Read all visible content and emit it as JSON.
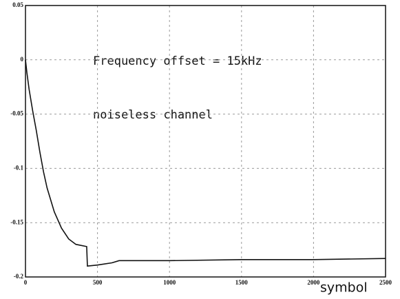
{
  "chart_data": {
    "type": "line",
    "annotations": [
      "Frequency offset = 15kHz",
      "noiseless channel"
    ],
    "x_label": "symbol",
    "x": [
      0,
      10,
      25,
      50,
      75,
      100,
      125,
      150,
      200,
      250,
      300,
      350,
      425,
      430,
      500,
      600,
      650,
      1000,
      1500,
      2000,
      2500
    ],
    "series": [
      {
        "color": "#111111",
        "values": [
          0,
          -0.012,
          -0.027,
          -0.047,
          -0.065,
          -0.085,
          -0.103,
          -0.118,
          -0.14,
          -0.155,
          -0.165,
          -0.17,
          -0.172,
          -0.19,
          -0.189,
          -0.187,
          -0.185,
          -0.185,
          -0.184,
          -0.184,
          -0.183
        ]
      }
    ],
    "xlim": [
      0,
      2500
    ],
    "xticks": [
      0,
      500,
      1000,
      1500,
      2000,
      2500
    ],
    "ylim": [
      -0.2,
      0.05
    ],
    "yticks": [
      0.05,
      0,
      -0.05,
      -0.1,
      -0.15,
      -0.2
    ],
    "grid": true
  }
}
